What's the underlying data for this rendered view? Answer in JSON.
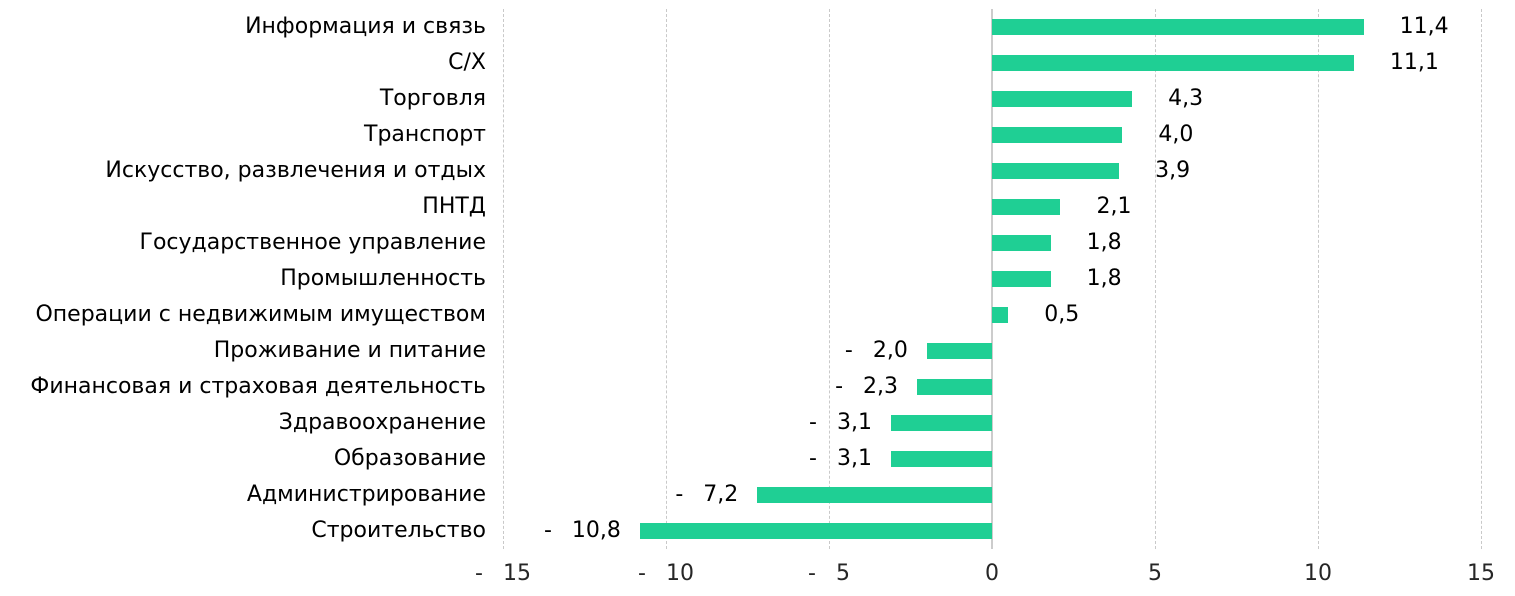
{
  "chart_data": {
    "type": "bar",
    "orientation": "horizontal",
    "title": "",
    "xlabel": "",
    "ylabel": "",
    "xlim": [
      -15,
      15
    ],
    "grid": "vertical-dashed",
    "legend": "none",
    "decimal_separator": ",",
    "categories": [
      "Информация и связь",
      "С/Х",
      "Торговля",
      "Транспорт",
      "Искусство, развлечения и отдых",
      "ПНТД",
      "Государственное управление",
      "Промышленность",
      "Операции с недвижимым имуществом",
      "Проживание и питание",
      "Финансовая и страховая деятельность",
      "Здравоохранение",
      "Образование",
      "Администрирование",
      "Строительство"
    ],
    "values": [
      11.4,
      11.1,
      4.3,
      4.0,
      3.9,
      2.1,
      1.8,
      1.8,
      0.5,
      -2.0,
      -2.3,
      -3.1,
      -3.1,
      -7.2,
      -10.8
    ],
    "value_labels": [
      "11,4",
      "11,1",
      "4,3",
      "4,0",
      "3,9",
      "2,1",
      "1,8",
      "1,8",
      "0,5",
      "- 2,0",
      "- 2,3",
      "- 3,1",
      "- 3,1",
      "- 7,2",
      "- 10,8"
    ],
    "x_ticks": [
      {
        "value": -15,
        "label": "- 15"
      },
      {
        "value": -10,
        "label": "- 10"
      },
      {
        "value": -5,
        "label": "- 5"
      },
      {
        "value": 0,
        "label": "0"
      },
      {
        "value": 5,
        "label": "5"
      },
      {
        "value": 10,
        "label": "10"
      },
      {
        "value": 15,
        "label": "15"
      }
    ],
    "colors": {
      "bar": "#1fcf94",
      "gridline": "#c9c9c9",
      "zero_line": "#cccccc",
      "text": "#000000"
    }
  }
}
